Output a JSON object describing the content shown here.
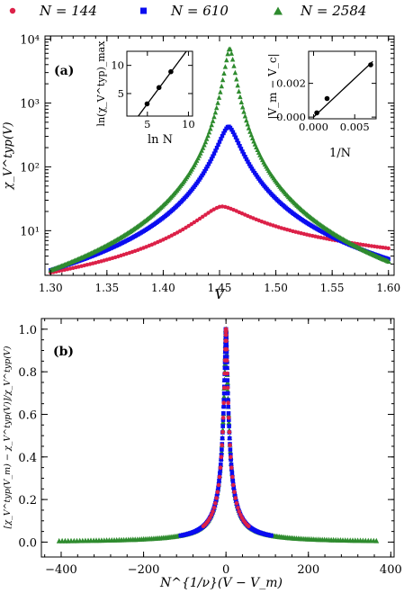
{
  "colors": {
    "s144": "#dc2148",
    "s610": "#0a0cf0",
    "s2584": "#2e8b2e",
    "fit": "#000000"
  },
  "legend": [
    {
      "label": "N = 144",
      "marker": "circle"
    },
    {
      "label": "N = 610",
      "marker": "square"
    },
    {
      "label": "N = 2584",
      "marker": "triangle"
    }
  ],
  "chart_data": [
    {
      "id": "a",
      "type": "scatter",
      "panel_label": "(a)",
      "xlabel": "V",
      "ylabel": "χ_V^typ(V)",
      "xlim": [
        1.295,
        1.605
      ],
      "ylim_log10": [
        0.3,
        4.05
      ],
      "y_scale": "log",
      "grid": false,
      "xticks": [
        1.3,
        1.35,
        1.4,
        1.45,
        1.5,
        1.55,
        1.6
      ],
      "xtick_labels": [
        "1.30",
        "1.35",
        "1.40",
        "1.45",
        "1.50",
        "1.55",
        "1.60"
      ],
      "yticks_log10": [
        1,
        2,
        3,
        4
      ],
      "ytick_labels": [
        "10¹",
        "10²",
        "10³",
        "10⁴"
      ],
      "series": [
        {
          "name": "N = 144",
          "Vm": 1.452,
          "peak": 24,
          "left_end": 2.2,
          "right_end": 5.3,
          "sample_step": 0.0025
        },
        {
          "name": "N = 610",
          "Vm": 1.458,
          "peak": 430,
          "left_end": 2.4,
          "right_end": 3.6,
          "sample_step": 0.0012
        },
        {
          "name": "N = 2584",
          "Vm": 1.459,
          "peak": 7200,
          "left_end": 2.4,
          "right_end": 3.3,
          "sample_step": 0.0011
        }
      ],
      "insets": [
        {
          "id": "left",
          "xlabel": "ln N",
          "ylabel": "ln(χ_V^typ)_max",
          "xlim": [
            2.5,
            10.5
          ],
          "ylim": [
            1.0,
            12.5
          ],
          "xticks": [
            5,
            10
          ],
          "yticks": [
            5,
            10
          ],
          "points": [
            {
              "x": 4.97,
              "y": 3.18
            },
            {
              "x": 6.41,
              "y": 6.06
            },
            {
              "x": 7.86,
              "y": 8.88
            }
          ],
          "fit": {
            "x": [
              3.0,
              10.2
            ],
            "y": [
              -0.75,
              13.4
            ]
          }
        },
        {
          "id": "right",
          "xlabel": "1/N",
          "ylabel": "|V_m − V_c|",
          "xlim": [
            -0.0006,
            0.0076
          ],
          "ylim": [
            -0.0001,
            0.0039
          ],
          "xticks": [
            0.0,
            0.005
          ],
          "xtick_labels": [
            "0.000",
            "0.005"
          ],
          "yticks": [
            0.0,
            0.002
          ],
          "ytick_labels": [
            "0.000",
            "0.002"
          ],
          "points": [
            {
              "x": 0.00039,
              "y": 0.00025
            },
            {
              "x": 0.00164,
              "y": 0.0011
            },
            {
              "x": 0.00694,
              "y": 0.0031
            }
          ],
          "fit": {
            "x": [
              0.0,
              0.0072
            ],
            "y": [
              0.0,
              0.0033
            ]
          }
        }
      ]
    },
    {
      "id": "b",
      "type": "scatter",
      "panel_label": "(b)",
      "xlabel": "N^{1/ν}(V − V_m)",
      "ylabel": "[χ_V^typ(V_m) − χ_V^typ(V)]/χ_V^typ(V)",
      "xlim": [
        -448,
        408
      ],
      "ylim": [
        -0.07,
        1.05
      ],
      "grid": false,
      "xticks": [
        -400,
        -200,
        0,
        200,
        400
      ],
      "yticks": [
        0.0,
        0.2,
        0.4,
        0.6,
        0.8,
        1.0
      ],
      "ytick_labels": [
        "0.0",
        "0.2",
        "0.4",
        "0.6",
        "0.8",
        "1.0"
      ],
      "series": [
        {
          "name": "N = 144",
          "x_range": [
            -55,
            55
          ],
          "width_scale": 10,
          "points": 55
        },
        {
          "name": "N = 610",
          "x_range": [
            -110,
            110
          ],
          "width_scale": 10,
          "points": 170
        },
        {
          "name": "N = 2584",
          "x_range": [
            -405,
            365
          ],
          "width_scale": 10,
          "points": 240
        }
      ]
    }
  ]
}
